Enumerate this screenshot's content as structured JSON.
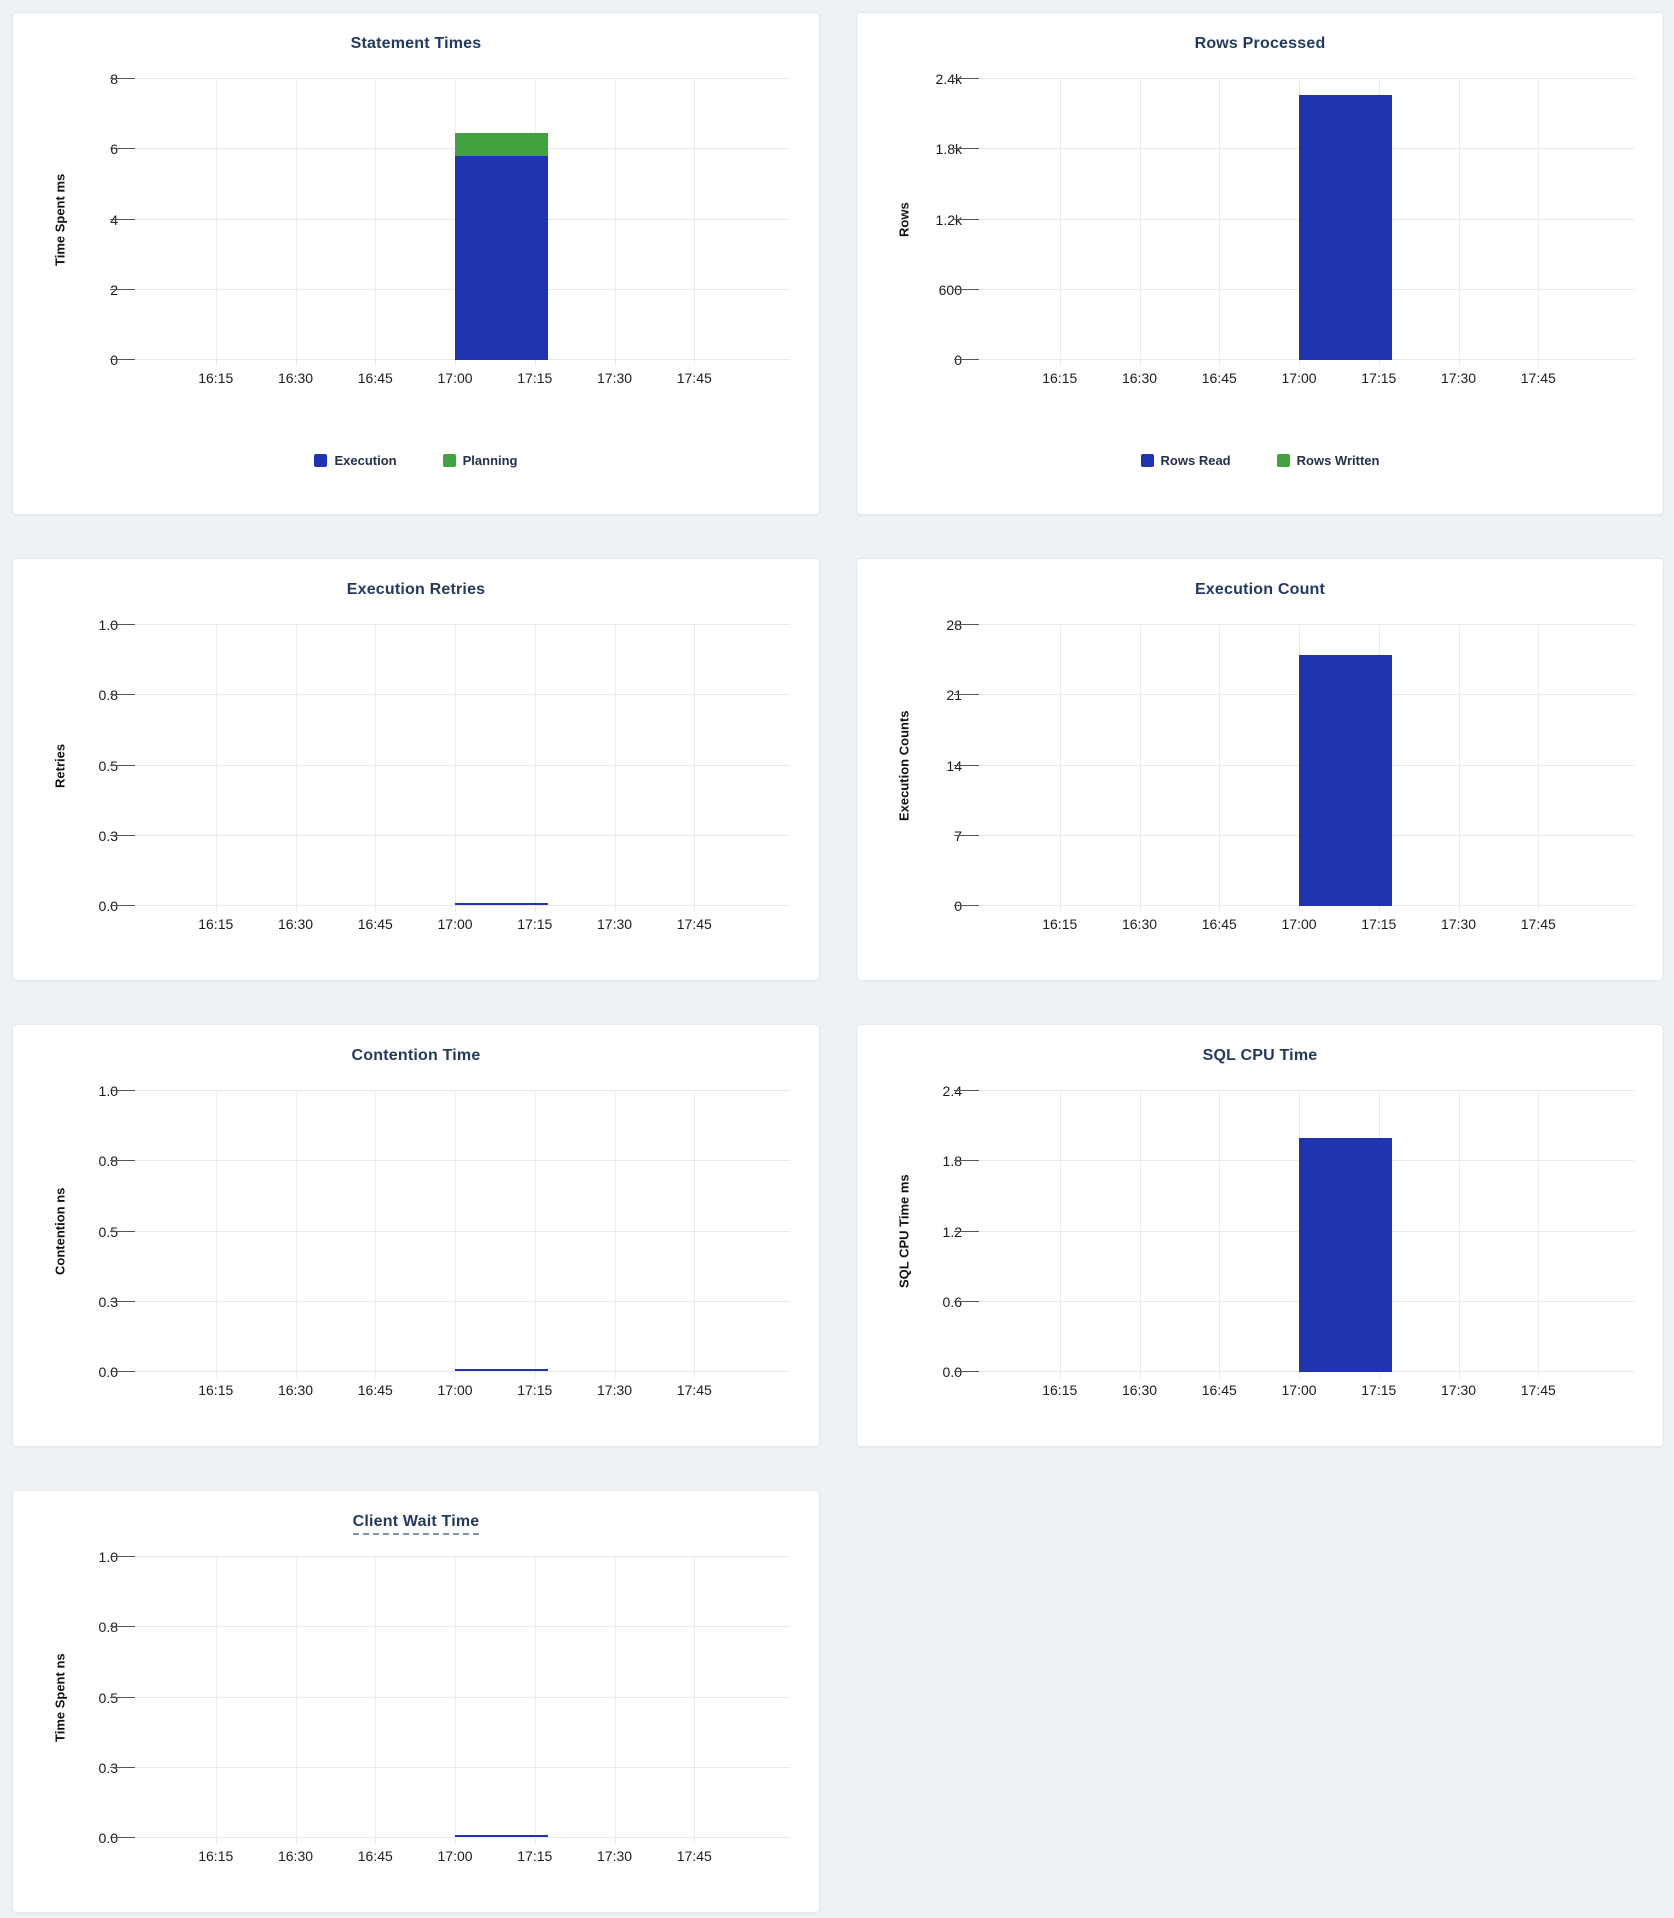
{
  "colors": {
    "bar_blue": "#2034b2",
    "bar_green": "#43a240",
    "title_navy": "#233a60",
    "page_background": "#eef2f5"
  },
  "chart_data": [
    {
      "type": "bar",
      "stacked": true,
      "title": "Statement Times",
      "ylabel": "Time Spent ms",
      "ytick_labels": [
        "0",
        "2",
        "4",
        "6",
        "8"
      ],
      "ymax": 8,
      "grid": true,
      "legend_position": "bottom",
      "x_categories": [
        "16:15",
        "16:30",
        "16:45",
        "17:00",
        "17:15",
        "17:30",
        "17:45"
      ],
      "bucket": {
        "start": "17:00",
        "end": "17:15"
      },
      "series": [
        {
          "name": "Execution",
          "color": "#2034b2",
          "value": 5.8
        },
        {
          "name": "Planning",
          "color": "#43a240",
          "value": 0.65
        }
      ],
      "legend": [
        {
          "label": "Execution",
          "color": "#2034b2"
        },
        {
          "label": "Planning",
          "color": "#43a240"
        }
      ]
    },
    {
      "type": "bar",
      "stacked": true,
      "title": "Rows Processed",
      "ylabel": "Rows",
      "ytick_labels": [
        "0",
        "600",
        "1.2k",
        "1.8k",
        "2.4k"
      ],
      "ymax": 2400,
      "grid": true,
      "legend_position": "bottom",
      "x_categories": [
        "16:15",
        "16:30",
        "16:45",
        "17:00",
        "17:15",
        "17:30",
        "17:45"
      ],
      "bucket": {
        "start": "17:00",
        "end": "17:15"
      },
      "series": [
        {
          "name": "Rows Read",
          "color": "#2034b2",
          "value": 2260
        },
        {
          "name": "Rows Written",
          "color": "#43a240",
          "value": 0
        }
      ],
      "legend": [
        {
          "label": "Rows Read",
          "color": "#2034b2"
        },
        {
          "label": "Rows Written",
          "color": "#43a240"
        }
      ]
    },
    {
      "type": "line",
      "title": "Execution Retries",
      "ylabel": "Retries",
      "ytick_labels": [
        "0.0",
        "0.3",
        "0.5",
        "0.8",
        "1.0"
      ],
      "ymax": 1,
      "grid": true,
      "x_categories": [
        "16:15",
        "16:30",
        "16:45",
        "17:00",
        "17:15",
        "17:30",
        "17:45"
      ],
      "bucket": {
        "start": "17:00",
        "end": "17:15"
      },
      "series": [
        {
          "name": "Retries",
          "color": "#2034b2",
          "value": 0
        }
      ]
    },
    {
      "type": "bar",
      "title": "Execution Count",
      "ylabel": "Execution Counts",
      "ytick_labels": [
        "0",
        "7",
        "14",
        "21",
        "28"
      ],
      "ymax": 28,
      "grid": true,
      "x_categories": [
        "16:15",
        "16:30",
        "16:45",
        "17:00",
        "17:15",
        "17:30",
        "17:45"
      ],
      "bucket": {
        "start": "17:00",
        "end": "17:15"
      },
      "series": [
        {
          "name": "Execution Count",
          "color": "#2034b2",
          "value": 25
        }
      ]
    },
    {
      "type": "line",
      "title": "Contention Time",
      "ylabel": "Contention ns",
      "ytick_labels": [
        "0.0",
        "0.3",
        "0.5",
        "0.8",
        "1.0"
      ],
      "ymax": 1,
      "grid": true,
      "x_categories": [
        "16:15",
        "16:30",
        "16:45",
        "17:00",
        "17:15",
        "17:30",
        "17:45"
      ],
      "bucket": {
        "start": "17:00",
        "end": "17:15"
      },
      "series": [
        {
          "name": "Contention",
          "color": "#2034b2",
          "value": 0
        }
      ]
    },
    {
      "type": "bar",
      "title": "SQL CPU Time",
      "ylabel": "SQL CPU Time ms",
      "ytick_labels": [
        "0.0",
        "0.6",
        "1.2",
        "1.8",
        "2.4"
      ],
      "ymax": 2.4,
      "grid": true,
      "x_categories": [
        "16:15",
        "16:30",
        "16:45",
        "17:00",
        "17:15",
        "17:30",
        "17:45"
      ],
      "bucket": {
        "start": "17:00",
        "end": "17:15"
      },
      "series": [
        {
          "name": "SQL CPU Time",
          "color": "#2034b2",
          "value": 2.0
        }
      ]
    },
    {
      "type": "line",
      "title": "Client Wait Time",
      "title_tooltip": true,
      "ylabel": "Time Spent ns",
      "ytick_labels": [
        "0.0",
        "0.3",
        "0.5",
        "0.8",
        "1.0"
      ],
      "ymax": 1,
      "grid": true,
      "x_categories": [
        "16:15",
        "16:30",
        "16:45",
        "17:00",
        "17:15",
        "17:30",
        "17:45"
      ],
      "bucket": {
        "start": "17:00",
        "end": "17:15"
      },
      "series": [
        {
          "name": "Client Wait",
          "color": "#2034b2",
          "value": 0
        }
      ]
    }
  ]
}
